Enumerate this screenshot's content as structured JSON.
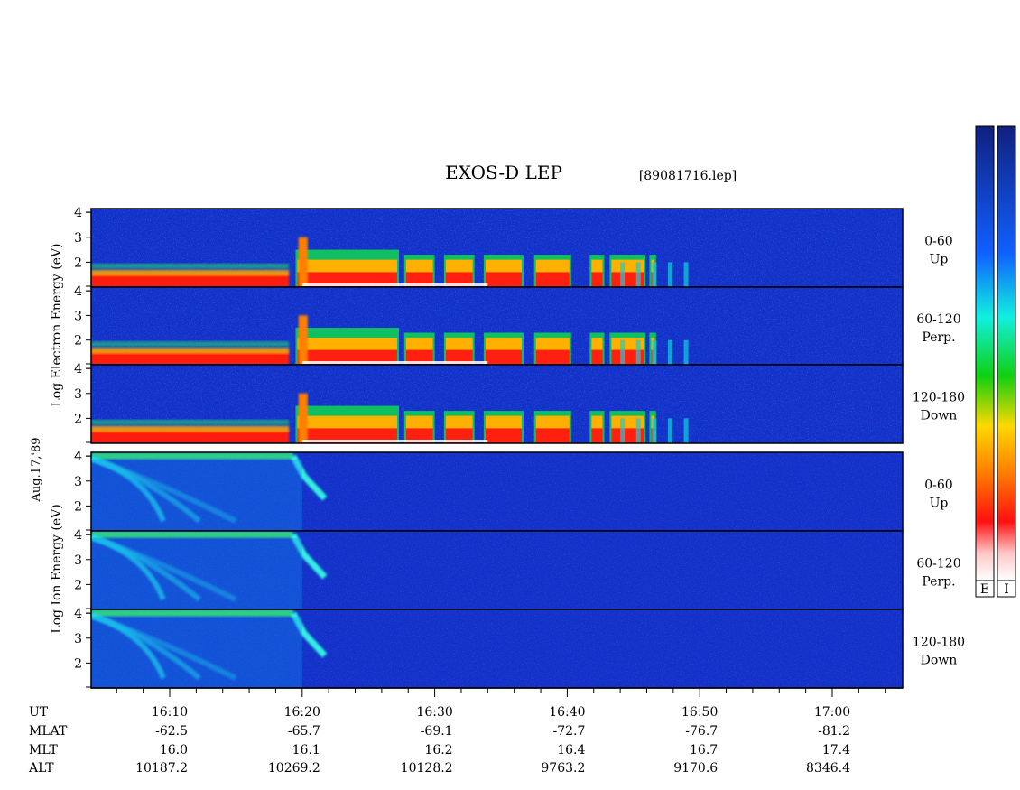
{
  "title": "EXOS-D LEP",
  "file_label": "[89081716.lep]",
  "date_label": "Aug.17,'89",
  "colors": {
    "spectrogram_colorscale": [
      "#1020a0",
      "#1540e0",
      "#10c8ff",
      "#20e070",
      "#ffd000",
      "#ff6000",
      "#ff1010",
      "#ffffff"
    ],
    "panel_background": "#1430c8"
  },
  "colorbars": [
    {
      "key": "E"
    },
    {
      "key": "I"
    }
  ],
  "electron_group": {
    "ylabel": "Log  Electron  Energy  (eV)",
    "panels": [
      {
        "angle": "0-60",
        "direction": "Up"
      },
      {
        "angle": "60-120",
        "direction": "Perp."
      },
      {
        "angle": "120-180",
        "direction": "Down"
      }
    ]
  },
  "ion_group": {
    "ylabel": "Log  Ion  Energy  (eV)",
    "panels": [
      {
        "angle": "0-60",
        "direction": "Up"
      },
      {
        "angle": "60-120",
        "direction": "Perp."
      },
      {
        "angle": "120-180",
        "direction": "Down"
      }
    ]
  },
  "ephemeris": {
    "row_labels": [
      "UT",
      "MLAT",
      "MLT",
      "ALT"
    ],
    "columns": [
      {
        "UT": "16:10",
        "MLAT": "-62.5",
        "MLT": "16.0",
        "ALT": "10187.2"
      },
      {
        "UT": "16:20",
        "MLAT": "-65.7",
        "MLT": "16.1",
        "ALT": "10269.2"
      },
      {
        "UT": "16:30",
        "MLAT": "-69.1",
        "MLT": "16.2",
        "ALT": "10128.2"
      },
      {
        "UT": "16:40",
        "MLAT": "-72.7",
        "MLT": "16.4",
        "ALT": "9763.2"
      },
      {
        "UT": "16:50",
        "MLAT": "-76.7",
        "MLT": "16.7",
        "ALT": "9170.6"
      },
      {
        "UT": "17:00",
        "MLAT": "-81.2",
        "MLT": "17.4",
        "ALT": "8346.4"
      }
    ]
  },
  "chart_data": {
    "type": "heatmap",
    "title": "EXOS-D LEP",
    "x_unit": "UT",
    "x_major_ticks": [
      "16:10",
      "16:20",
      "16:30",
      "16:40",
      "16:50",
      "17:00"
    ],
    "x_range_minutes": [
      16.04,
      17.14
    ],
    "y_scale": "log10 energy (eV)",
    "y_ticks": [
      2,
      3,
      4
    ],
    "ylim": [
      1,
      4.1
    ],
    "panels": [
      {
        "species": "Electron",
        "pitch_angle": "0-60",
        "direction": "Up"
      },
      {
        "species": "Electron",
        "pitch_angle": "60-120",
        "direction": "Perp."
      },
      {
        "species": "Electron",
        "pitch_angle": "120-180",
        "direction": "Down"
      },
      {
        "species": "Ion",
        "pitch_angle": "0-60",
        "direction": "Up"
      },
      {
        "species": "Ion",
        "pitch_angle": "60-120",
        "direction": "Perp."
      },
      {
        "species": "Ion",
        "pitch_angle": "120-180",
        "direction": "Down"
      }
    ],
    "electron_bursts_UT": [
      "16:20",
      "16:25",
      "16:28",
      "16:31",
      "16:35",
      "16:40",
      "16:42",
      "16:48"
    ],
    "ion_dispersion_feature_UT": "16:20"
  }
}
